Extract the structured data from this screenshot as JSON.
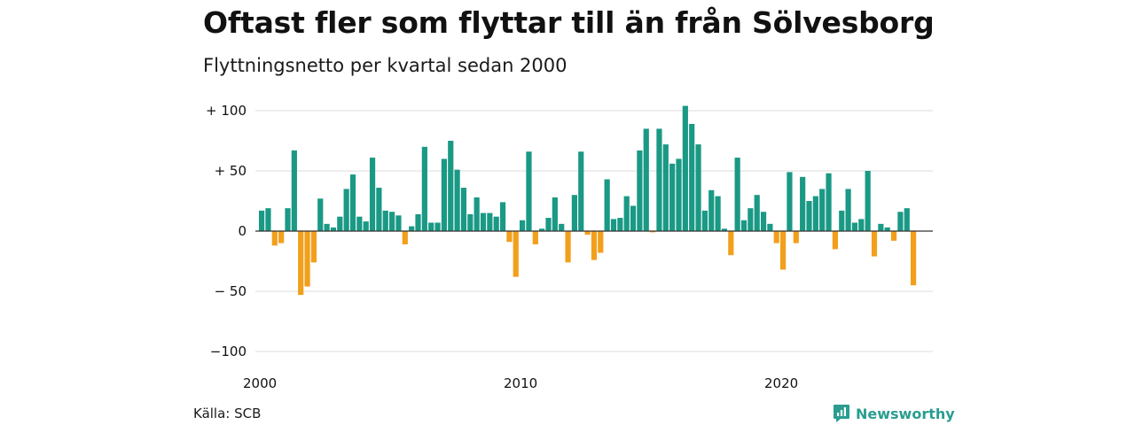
{
  "title": "Oftast fler som flyttar till än från Sölvesborg",
  "subtitle": "Flyttningsnetto per kvartal sedan 2000",
  "source": "Källa: SCB",
  "brand": {
    "name": "Newsworthy",
    "icon": "newsworthy-logo-icon",
    "color": "#2a9d8f"
  },
  "chart_data": {
    "type": "bar",
    "title": "Oftast fler som flyttar till än från Sölvesborg",
    "subtitle": "Flyttningsnetto per kvartal sedan 2000",
    "xlabel": "",
    "ylabel": "",
    "ylim": [
      -100,
      100
    ],
    "grid": true,
    "legend": "none",
    "colors": {
      "positive": "#1a9985",
      "negative": "#f29f1c"
    },
    "y_ticks": [
      100,
      50,
      0,
      -50,
      -100
    ],
    "y_tick_labels": [
      "+ 100",
      "+  50",
      "0",
      "− 50",
      "−100"
    ],
    "x_ticks": [
      2000,
      2010,
      2020
    ],
    "x_tick_labels": [
      "2000",
      "2010",
      "2020"
    ],
    "start_year": 2000,
    "start_quarter": 1,
    "values": [
      17,
      19,
      -12,
      -10,
      19,
      67,
      -53,
      -46,
      -26,
      27,
      6,
      3,
      12,
      35,
      47,
      12,
      8,
      61,
      36,
      17,
      16,
      13,
      -11,
      4,
      14,
      70,
      7,
      7,
      60,
      75,
      51,
      36,
      14,
      28,
      15,
      15,
      12,
      24,
      -9,
      -38,
      9,
      66,
      -11,
      2,
      11,
      28,
      6,
      -26,
      30,
      66,
      -3,
      -24,
      -18,
      43,
      10,
      11,
      29,
      21,
      67,
      85,
      -1,
      85,
      72,
      56,
      60,
      104,
      89,
      72,
      17,
      34,
      29,
      2,
      -20,
      61,
      9,
      19,
      30,
      16,
      6,
      -10,
      -32,
      49,
      -10,
      45,
      25,
      29,
      35,
      48,
      -15,
      17,
      35,
      7,
      10,
      50,
      -21,
      6,
      3,
      -8,
      16,
      19,
      -45
    ]
  }
}
